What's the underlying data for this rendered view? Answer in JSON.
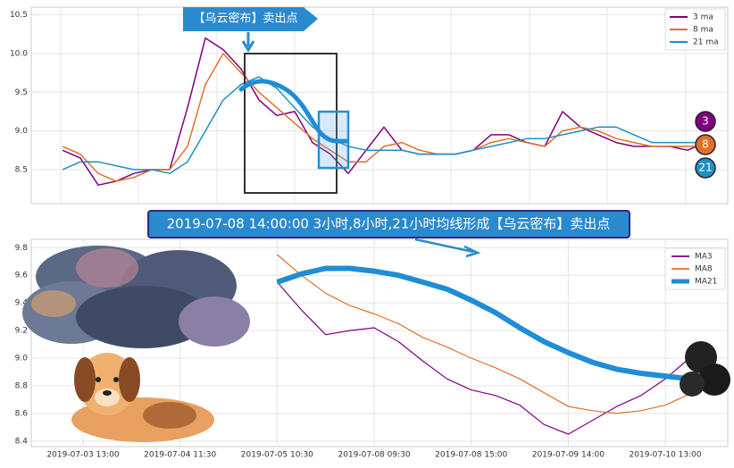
{
  "chart_data": [
    {
      "type": "line",
      "ylim": [
        8.06,
        10.6
      ],
      "yticks": [
        8.5,
        {
          "value": 9,
          "label": "9.0"
        },
        9.5,
        {
          "value": 10,
          "label": "10.0"
        },
        10.5
      ],
      "grid": true,
      "legend": "upper right",
      "annotation": "【乌云密布】卖出点",
      "badges": [
        "3",
        "8",
        "21"
      ],
      "series": [
        {
          "name": "3 ma",
          "color": "#800080",
          "values": [
            8.75,
            8.65,
            8.3,
            8.35,
            8.45,
            8.5,
            8.5,
            9.3,
            10.2,
            10.05,
            9.8,
            9.4,
            9.2,
            9.25,
            8.85,
            8.7,
            8.45,
            8.75,
            9.05,
            8.75,
            8.7,
            8.7,
            8.7,
            8.75,
            8.95,
            8.95,
            8.85,
            8.8,
            9.25,
            9.05,
            8.95,
            8.85,
            8.8,
            8.8,
            8.8,
            8.75,
            8.85
          ]
        },
        {
          "name": "8 ma",
          "color": "#e07028",
          "values": [
            8.8,
            8.7,
            8.45,
            8.35,
            8.4,
            8.5,
            8.5,
            8.8,
            9.6,
            10.0,
            9.75,
            9.5,
            9.3,
            9.1,
            8.9,
            8.75,
            8.6,
            8.6,
            8.8,
            8.85,
            8.75,
            8.7,
            8.7,
            8.75,
            8.85,
            8.9,
            8.85,
            8.8,
            9.0,
            9.05,
            9.0,
            8.9,
            8.85,
            8.8,
            8.8,
            8.8,
            8.8
          ]
        },
        {
          "name": "21 ma",
          "color": "#2090c0",
          "values": [
            8.5,
            8.6,
            8.6,
            8.55,
            8.5,
            8.5,
            8.45,
            8.6,
            9.0,
            9.4,
            9.6,
            9.7,
            9.55,
            9.3,
            9.05,
            8.9,
            8.8,
            8.75,
            8.75,
            8.75,
            8.7,
            8.7,
            8.7,
            8.75,
            8.8,
            8.85,
            8.9,
            8.9,
            8.95,
            9.0,
            9.05,
            9.05,
            8.95,
            8.85,
            8.85,
            8.85,
            8.85
          ]
        }
      ]
    },
    {
      "type": "line",
      "ylim": [
        8.36,
        9.86
      ],
      "yticks": [
        8.4,
        8.6,
        8.8,
        {
          "value": 9,
          "label": "9.0"
        },
        9.2,
        9.4,
        9.6,
        9.8
      ],
      "grid": true,
      "legend": "upper right",
      "annotation": "2019-07-08 14:00:00 3小时,8小时,21小时均线形成【乌云密布】卖出点",
      "categories": [
        "2019-07-03 13:00",
        null,
        null,
        null,
        "2019-07-04 11:30",
        null,
        null,
        null,
        "2019-07-05 10:30",
        null,
        null,
        null,
        "2019-07-08 09:30",
        null,
        null,
        null,
        "2019-07-08 15:00",
        null,
        null,
        null,
        "2019-07-09 14:00",
        null,
        null,
        null,
        "2019-07-10 13:00",
        null
      ],
      "series": [
        {
          "name": "MA3",
          "color": "#800080",
          "values": [
            null,
            null,
            null,
            null,
            null,
            null,
            null,
            null,
            9.55,
            9.35,
            9.17,
            9.2,
            9.22,
            9.12,
            8.98,
            8.85,
            8.77,
            8.73,
            8.66,
            8.52,
            8.45,
            8.55,
            8.65,
            8.73,
            8.85,
            9.0
          ]
        },
        {
          "name": "MA8",
          "color": "#e07028",
          "values": [
            null,
            null,
            null,
            null,
            null,
            null,
            null,
            null,
            9.75,
            9.6,
            9.47,
            9.38,
            9.32,
            9.25,
            9.15,
            9.08,
            9.0,
            8.93,
            8.85,
            8.75,
            8.65,
            8.62,
            8.6,
            8.62,
            8.66,
            8.74
          ]
        },
        {
          "name": "MA21",
          "color": "#1f8dd6",
          "values": [
            null,
            null,
            null,
            null,
            null,
            null,
            null,
            null,
            9.55,
            9.61,
            9.65,
            9.65,
            9.63,
            9.6,
            9.55,
            9.5,
            9.42,
            9.33,
            9.22,
            9.12,
            9.04,
            8.97,
            8.92,
            8.89,
            8.87,
            8.85
          ]
        }
      ]
    }
  ]
}
